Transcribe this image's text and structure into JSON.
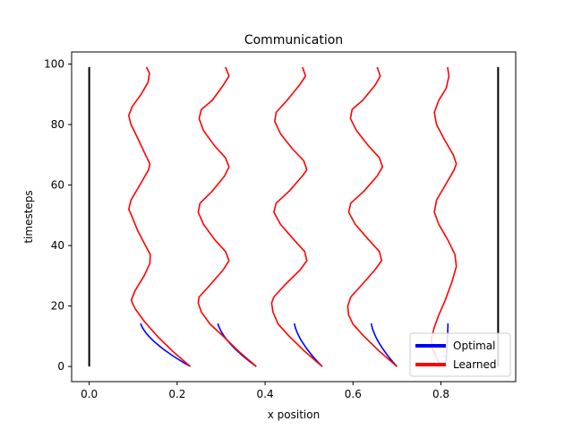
{
  "chart_data": {
    "type": "line",
    "title": "Communication",
    "xlabel": "x position",
    "ylabel": "timesteps",
    "xlim": [
      -0.04,
      0.97
    ],
    "ylim": [
      -5,
      104
    ],
    "xticks": [
      0.0,
      0.2,
      0.4,
      0.6,
      0.8
    ],
    "xtick_labels": [
      "0.0",
      "0.2",
      "0.4",
      "0.6",
      "0.8"
    ],
    "yticks": [
      0,
      20,
      40,
      60,
      80,
      100
    ],
    "ytick_labels": [
      "0",
      "20",
      "40",
      "60",
      "80",
      "100"
    ],
    "grid": false,
    "legend": {
      "position": "bottom-right",
      "entries": [
        {
          "label": "Optimal",
          "color": "#0000ff"
        },
        {
          "label": "Learned",
          "color": "#ff0000"
        }
      ]
    },
    "boundaries": [
      {
        "x": 0.0,
        "y": [
          0,
          99
        ],
        "color": "#000000"
      },
      {
        "x": 0.93,
        "y": [
          0,
          99
        ],
        "color": "#000000"
      }
    ],
    "agents": [
      {
        "optimal": {
          "start": 0.23,
          "end": 0.116,
          "color": "#0000ff"
        },
        "learned": {
          "color": "#ff0000",
          "points": [
            [
              0.23,
              0
            ],
            [
              0.19,
              5
            ],
            [
              0.155,
              10
            ],
            [
              0.125,
              15
            ],
            [
              0.105,
              19
            ],
            [
              0.098,
              21
            ],
            [
              0.096,
              22
            ],
            [
              0.104,
              25
            ],
            [
              0.125,
              30
            ],
            [
              0.138,
              34
            ],
            [
              0.139,
              37
            ],
            [
              0.128,
              40
            ],
            [
              0.11,
              45
            ],
            [
              0.096,
              50
            ],
            [
              0.09,
              52
            ],
            [
              0.095,
              55
            ],
            [
              0.115,
              60
            ],
            [
              0.135,
              65
            ],
            [
              0.138,
              67
            ],
            [
              0.128,
              70
            ],
            [
              0.112,
              75
            ],
            [
              0.095,
              80
            ],
            [
              0.09,
              83
            ],
            [
              0.098,
              86
            ],
            [
              0.118,
              90
            ],
            [
              0.134,
              94
            ],
            [
              0.137,
              97
            ],
            [
              0.13,
              99
            ]
          ]
        }
      },
      {
        "optimal": {
          "start": 0.38,
          "end": 0.292,
          "color": "#0000ff"
        },
        "learned": {
          "color": "#ff0000",
          "points": [
            [
              0.38,
              0
            ],
            [
              0.34,
              5
            ],
            [
              0.305,
              10
            ],
            [
              0.275,
              14
            ],
            [
              0.255,
              18
            ],
            [
              0.248,
              21
            ],
            [
              0.25,
              23
            ],
            [
              0.275,
              27
            ],
            [
              0.305,
              32
            ],
            [
              0.318,
              35
            ],
            [
              0.31,
              38
            ],
            [
              0.285,
              42
            ],
            [
              0.26,
              47
            ],
            [
              0.248,
              51
            ],
            [
              0.252,
              54
            ],
            [
              0.28,
              58
            ],
            [
              0.308,
              63
            ],
            [
              0.318,
              66
            ],
            [
              0.31,
              69
            ],
            [
              0.285,
              73
            ],
            [
              0.26,
              78
            ],
            [
              0.25,
              82
            ],
            [
              0.255,
              85
            ],
            [
              0.28,
              88
            ],
            [
              0.305,
              93
            ],
            [
              0.318,
              96
            ],
            [
              0.31,
              99
            ]
          ]
        }
      },
      {
        "optimal": {
          "start": 0.53,
          "end": 0.466,
          "color": "#0000ff"
        },
        "learned": {
          "color": "#ff0000",
          "points": [
            [
              0.53,
              0
            ],
            [
              0.49,
              5
            ],
            [
              0.455,
              10
            ],
            [
              0.43,
              14
            ],
            [
              0.418,
              18
            ],
            [
              0.415,
              21
            ],
            [
              0.42,
              23
            ],
            [
              0.445,
              27
            ],
            [
              0.48,
              32
            ],
            [
              0.495,
              35
            ],
            [
              0.49,
              38
            ],
            [
              0.465,
              42
            ],
            [
              0.435,
              47
            ],
            [
              0.42,
              51
            ],
            [
              0.425,
              54
            ],
            [
              0.455,
              58
            ],
            [
              0.485,
              63
            ],
            [
              0.495,
              65
            ],
            [
              0.488,
              68
            ],
            [
              0.462,
              72
            ],
            [
              0.435,
              77
            ],
            [
              0.422,
              81
            ],
            [
              0.425,
              84
            ],
            [
              0.45,
              88
            ],
            [
              0.478,
              93
            ],
            [
              0.492,
              96
            ],
            [
              0.485,
              99
            ]
          ]
        }
      },
      {
        "optimal": {
          "start": 0.7,
          "end": 0.641,
          "color": "#0000ff"
        },
        "learned": {
          "color": "#ff0000",
          "points": [
            [
              0.7,
              0
            ],
            [
              0.66,
              5
            ],
            [
              0.625,
              10
            ],
            [
              0.6,
              14
            ],
            [
              0.59,
              17
            ],
            [
              0.588,
              20
            ],
            [
              0.595,
              23
            ],
            [
              0.62,
              27
            ],
            [
              0.65,
              32
            ],
            [
              0.665,
              35
            ],
            [
              0.66,
              38
            ],
            [
              0.635,
              42
            ],
            [
              0.605,
              47
            ],
            [
              0.59,
              51
            ],
            [
              0.595,
              54
            ],
            [
              0.625,
              58
            ],
            [
              0.655,
              63
            ],
            [
              0.667,
              66
            ],
            [
              0.66,
              69
            ],
            [
              0.635,
              73
            ],
            [
              0.608,
              78
            ],
            [
              0.594,
              82
            ],
            [
              0.598,
              85
            ],
            [
              0.622,
              88
            ],
            [
              0.65,
              93
            ],
            [
              0.662,
              96
            ],
            [
              0.655,
              99
            ]
          ]
        }
      },
      {
        "optimal": {
          "start": 0.81,
          "end": 0.816,
          "color": "#0000ff"
        },
        "learned": {
          "color": "#ff0000",
          "points": [
            [
              0.8,
              0
            ],
            [
              0.79,
              3
            ],
            [
              0.78,
              6
            ],
            [
              0.778,
              9
            ],
            [
              0.785,
              13
            ],
            [
              0.795,
              17
            ],
            [
              0.81,
              22
            ],
            [
              0.825,
              28
            ],
            [
              0.835,
              33
            ],
            [
              0.832,
              37
            ],
            [
              0.815,
              42
            ],
            [
              0.795,
              47
            ],
            [
              0.785,
              51
            ],
            [
              0.79,
              55
            ],
            [
              0.81,
              60
            ],
            [
              0.83,
              65
            ],
            [
              0.835,
              67
            ],
            [
              0.828,
              70
            ],
            [
              0.808,
              75
            ],
            [
              0.79,
              80
            ],
            [
              0.785,
              84
            ],
            [
              0.795,
              88
            ],
            [
              0.812,
              92
            ],
            [
              0.818,
              96
            ],
            [
              0.815,
              99
            ]
          ]
        }
      }
    ]
  }
}
